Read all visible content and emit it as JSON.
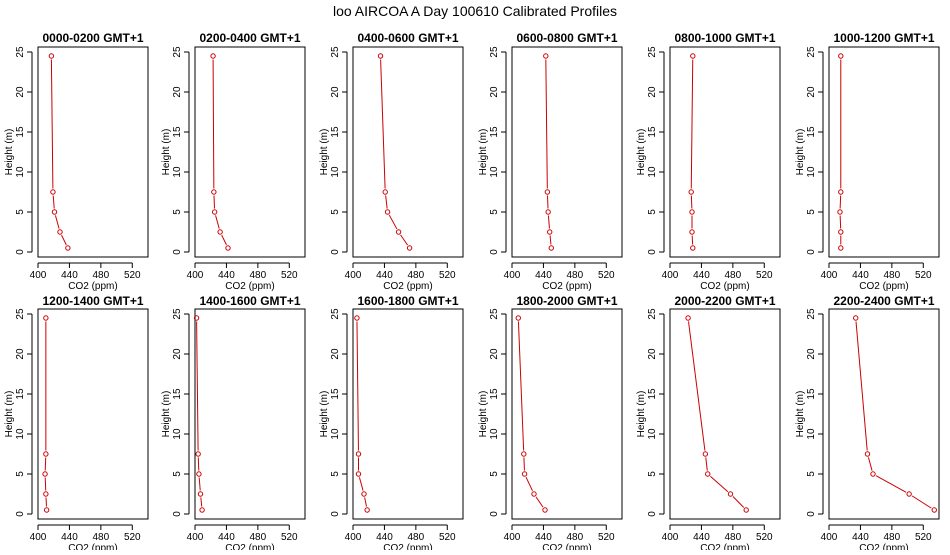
{
  "title": "loo AIRCOA A  Day 100610  Calibrated Profiles",
  "chart_data": {
    "type": "line",
    "title": "loo AIRCOA A  Day 100610  Calibrated Profiles",
    "xlabel": "CO2 (ppm)",
    "ylabel": "Height (m)",
    "xlim": [
      400,
      540
    ],
    "ylim": [
      0,
      25
    ],
    "x_ticks": [
      400,
      440,
      480,
      520
    ],
    "y_ticks": [
      0,
      5,
      10,
      15,
      20,
      25
    ],
    "color": "#cc0000",
    "panels": [
      {
        "title": "0000-0200 GMT+1",
        "points": [
          {
            "x": 438,
            "y": 0.5
          },
          {
            "x": 428,
            "y": 2.5
          },
          {
            "x": 421,
            "y": 5
          },
          {
            "x": 419,
            "y": 7.5
          },
          {
            "x": 417,
            "y": 24.5
          }
        ]
      },
      {
        "title": "0200-0400 GMT+1",
        "points": [
          {
            "x": 442,
            "y": 0.5
          },
          {
            "x": 432,
            "y": 2.5
          },
          {
            "x": 425,
            "y": 5
          },
          {
            "x": 424,
            "y": 7.5
          },
          {
            "x": 423,
            "y": 24.5
          }
        ]
      },
      {
        "title": "0400-0600 GMT+1",
        "points": [
          {
            "x": 472,
            "y": 0.5
          },
          {
            "x": 458,
            "y": 2.5
          },
          {
            "x": 444,
            "y": 5
          },
          {
            "x": 441,
            "y": 7.5
          },
          {
            "x": 435,
            "y": 24.5
          }
        ]
      },
      {
        "title": "0600-0800 GMT+1",
        "points": [
          {
            "x": 450,
            "y": 0.5
          },
          {
            "x": 448,
            "y": 2.5
          },
          {
            "x": 446,
            "y": 5
          },
          {
            "x": 445,
            "y": 7.5
          },
          {
            "x": 443,
            "y": 24.5
          }
        ]
      },
      {
        "title": "0800-1000 GMT+1",
        "points": [
          {
            "x": 429,
            "y": 0.5
          },
          {
            "x": 428,
            "y": 2.5
          },
          {
            "x": 428,
            "y": 5
          },
          {
            "x": 427,
            "y": 7.5
          },
          {
            "x": 429,
            "y": 24.5
          }
        ]
      },
      {
        "title": "1000-1200 GMT+1",
        "points": [
          {
            "x": 415,
            "y": 0.5
          },
          {
            "x": 415,
            "y": 2.5
          },
          {
            "x": 414,
            "y": 5
          },
          {
            "x": 415,
            "y": 7.5
          },
          {
            "x": 415,
            "y": 24.5
          }
        ]
      },
      {
        "title": "1200-1400 GMT+1",
        "points": [
          {
            "x": 411,
            "y": 0.5
          },
          {
            "x": 410,
            "y": 2.5
          },
          {
            "x": 409,
            "y": 5
          },
          {
            "x": 410,
            "y": 7.5
          },
          {
            "x": 410,
            "y": 24.5
          }
        ]
      },
      {
        "title": "1400-1600 GMT+1",
        "points": [
          {
            "x": 409,
            "y": 0.5
          },
          {
            "x": 407,
            "y": 2.5
          },
          {
            "x": 405,
            "y": 5
          },
          {
            "x": 404,
            "y": 7.5
          },
          {
            "x": 402,
            "y": 24.5
          }
        ]
      },
      {
        "title": "1600-1800 GMT+1",
        "points": [
          {
            "x": 418,
            "y": 0.5
          },
          {
            "x": 414,
            "y": 2.5
          },
          {
            "x": 407,
            "y": 5
          },
          {
            "x": 407,
            "y": 7.5
          },
          {
            "x": 405,
            "y": 24.5
          }
        ]
      },
      {
        "title": "1800-2000 GMT+1",
        "points": [
          {
            "x": 442,
            "y": 0.5
          },
          {
            "x": 428,
            "y": 2.5
          },
          {
            "x": 416,
            "y": 5
          },
          {
            "x": 415,
            "y": 7.5
          },
          {
            "x": 408,
            "y": 24.5
          }
        ]
      },
      {
        "title": "2000-2200 GMT+1",
        "points": [
          {
            "x": 497,
            "y": 0.5
          },
          {
            "x": 477,
            "y": 2.5
          },
          {
            "x": 448,
            "y": 5
          },
          {
            "x": 445,
            "y": 7.5
          },
          {
            "x": 423,
            "y": 24.5
          }
        ]
      },
      {
        "title": "2200-2400 GMT+1",
        "points": [
          {
            "x": 534,
            "y": 0.5
          },
          {
            "x": 502,
            "y": 2.5
          },
          {
            "x": 456,
            "y": 5
          },
          {
            "x": 449,
            "y": 7.5
          },
          {
            "x": 434,
            "y": 24.5
          }
        ]
      }
    ]
  }
}
